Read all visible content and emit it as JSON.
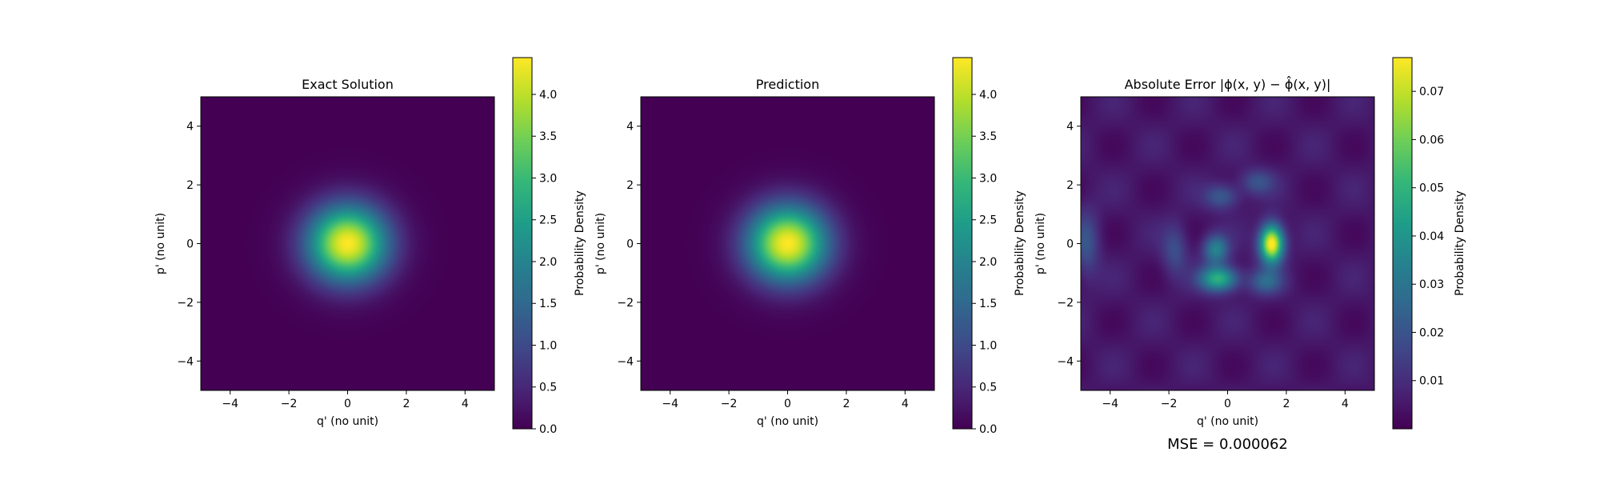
{
  "chart_data": [
    {
      "type": "heatmap",
      "title": "Exact Solution",
      "xlabel": "q' (no unit)",
      "ylabel": "p' (no unit)",
      "xlim": [
        -5,
        5
      ],
      "ylim": [
        -5,
        5
      ],
      "xticks": [
        -4,
        -2,
        0,
        2,
        4
      ],
      "yticks": [
        -4,
        -2,
        0,
        2,
        4
      ],
      "xtick_labels": [
        "−4",
        "−2",
        "0",
        "2",
        "4"
      ],
      "ytick_labels": [
        "−4",
        "−2",
        "0",
        "2",
        "4"
      ],
      "colormap": "viridis",
      "colorbar": {
        "label": "Probability Density",
        "range": [
          0,
          4.44
        ],
        "ticks": [
          0.0,
          0.5,
          1.0,
          1.5,
          2.0,
          2.5,
          3.0,
          3.5,
          4.0
        ],
        "tick_labels": [
          "0.0",
          "0.5",
          "1.0",
          "1.5",
          "2.0",
          "2.5",
          "3.0",
          "3.5",
          "4.0"
        ]
      },
      "field": {
        "kind": "gaussian",
        "center": [
          0,
          0
        ],
        "peak": 4.44,
        "sigma_x": 0.95,
        "sigma_y": 0.9
      }
    },
    {
      "type": "heatmap",
      "title": "Prediction",
      "xlabel": "q' (no unit)",
      "ylabel": "p' (no unit)",
      "xlim": [
        -5,
        5
      ],
      "ylim": [
        -5,
        5
      ],
      "xticks": [
        -4,
        -2,
        0,
        2,
        4
      ],
      "yticks": [
        -4,
        -2,
        0,
        2,
        4
      ],
      "xtick_labels": [
        "−4",
        "−2",
        "0",
        "2",
        "4"
      ],
      "ytick_labels": [
        "−4",
        "−2",
        "0",
        "2",
        "4"
      ],
      "colormap": "viridis",
      "colorbar": {
        "label": "Probability Density",
        "range": [
          0,
          4.44
        ],
        "ticks": [
          0.0,
          0.5,
          1.0,
          1.5,
          2.0,
          2.5,
          3.0,
          3.5,
          4.0
        ],
        "tick_labels": [
          "0.0",
          "0.5",
          "1.0",
          "1.5",
          "2.0",
          "2.5",
          "3.0",
          "3.5",
          "4.0"
        ]
      },
      "field": {
        "kind": "gaussian",
        "center": [
          0,
          0
        ],
        "peak": 4.44,
        "sigma_x": 0.95,
        "sigma_y": 0.9
      }
    },
    {
      "type": "heatmap",
      "title": "Absolute Error |ϕ(x, y) − ϕ̂(x, y)|",
      "xlabel": "q' (no unit)",
      "ylabel": "p' (no unit)",
      "xlim": [
        -5,
        5
      ],
      "ylim": [
        -5,
        5
      ],
      "xticks": [
        -4,
        -2,
        0,
        2,
        4
      ],
      "yticks": [
        -4,
        -2,
        0,
        2,
        4
      ],
      "xtick_labels": [
        "−4",
        "−2",
        "0",
        "2",
        "4"
      ],
      "ytick_labels": [
        "−4",
        "−2",
        "0",
        "2",
        "4"
      ],
      "colormap": "viridis",
      "colorbar": {
        "label": "Probability Density",
        "range": [
          0.0,
          0.077
        ],
        "ticks": [
          0.01,
          0.02,
          0.03,
          0.04,
          0.05,
          0.06,
          0.07
        ],
        "tick_labels": [
          "0.01",
          "0.02",
          "0.03",
          "0.04",
          "0.05",
          "0.06",
          "0.07"
        ]
      },
      "field": {
        "kind": "error",
        "background": 0.008,
        "blobs": [
          {
            "center": [
              1.5,
              0.0
            ],
            "value": 0.077,
            "sigma_x": 0.28,
            "sigma_y": 0.45
          },
          {
            "center": [
              -0.3,
              -1.2
            ],
            "value": 0.045,
            "sigma_x": 0.45,
            "sigma_y": 0.3
          },
          {
            "center": [
              -0.4,
              -0.2
            ],
            "value": 0.03,
            "sigma_x": 0.3,
            "sigma_y": 0.35
          },
          {
            "center": [
              1.3,
              -1.3
            ],
            "value": 0.02,
            "sigma_x": 0.4,
            "sigma_y": 0.3
          },
          {
            "center": [
              -0.2,
              1.6
            ],
            "value": 0.018,
            "sigma_x": 0.4,
            "sigma_y": 0.3
          },
          {
            "center": [
              1.0,
              2.1
            ],
            "value": 0.015,
            "sigma_x": 0.4,
            "sigma_y": 0.3
          },
          {
            "center": [
              -1.8,
              -0.2
            ],
            "value": 0.014,
            "sigma_x": 0.3,
            "sigma_y": 0.6
          },
          {
            "center": [
              -4.8,
              0.0
            ],
            "value": 0.015,
            "sigma_x": 0.3,
            "sigma_y": 0.8
          }
        ]
      },
      "annotation": "MSE = 0.000062"
    }
  ]
}
